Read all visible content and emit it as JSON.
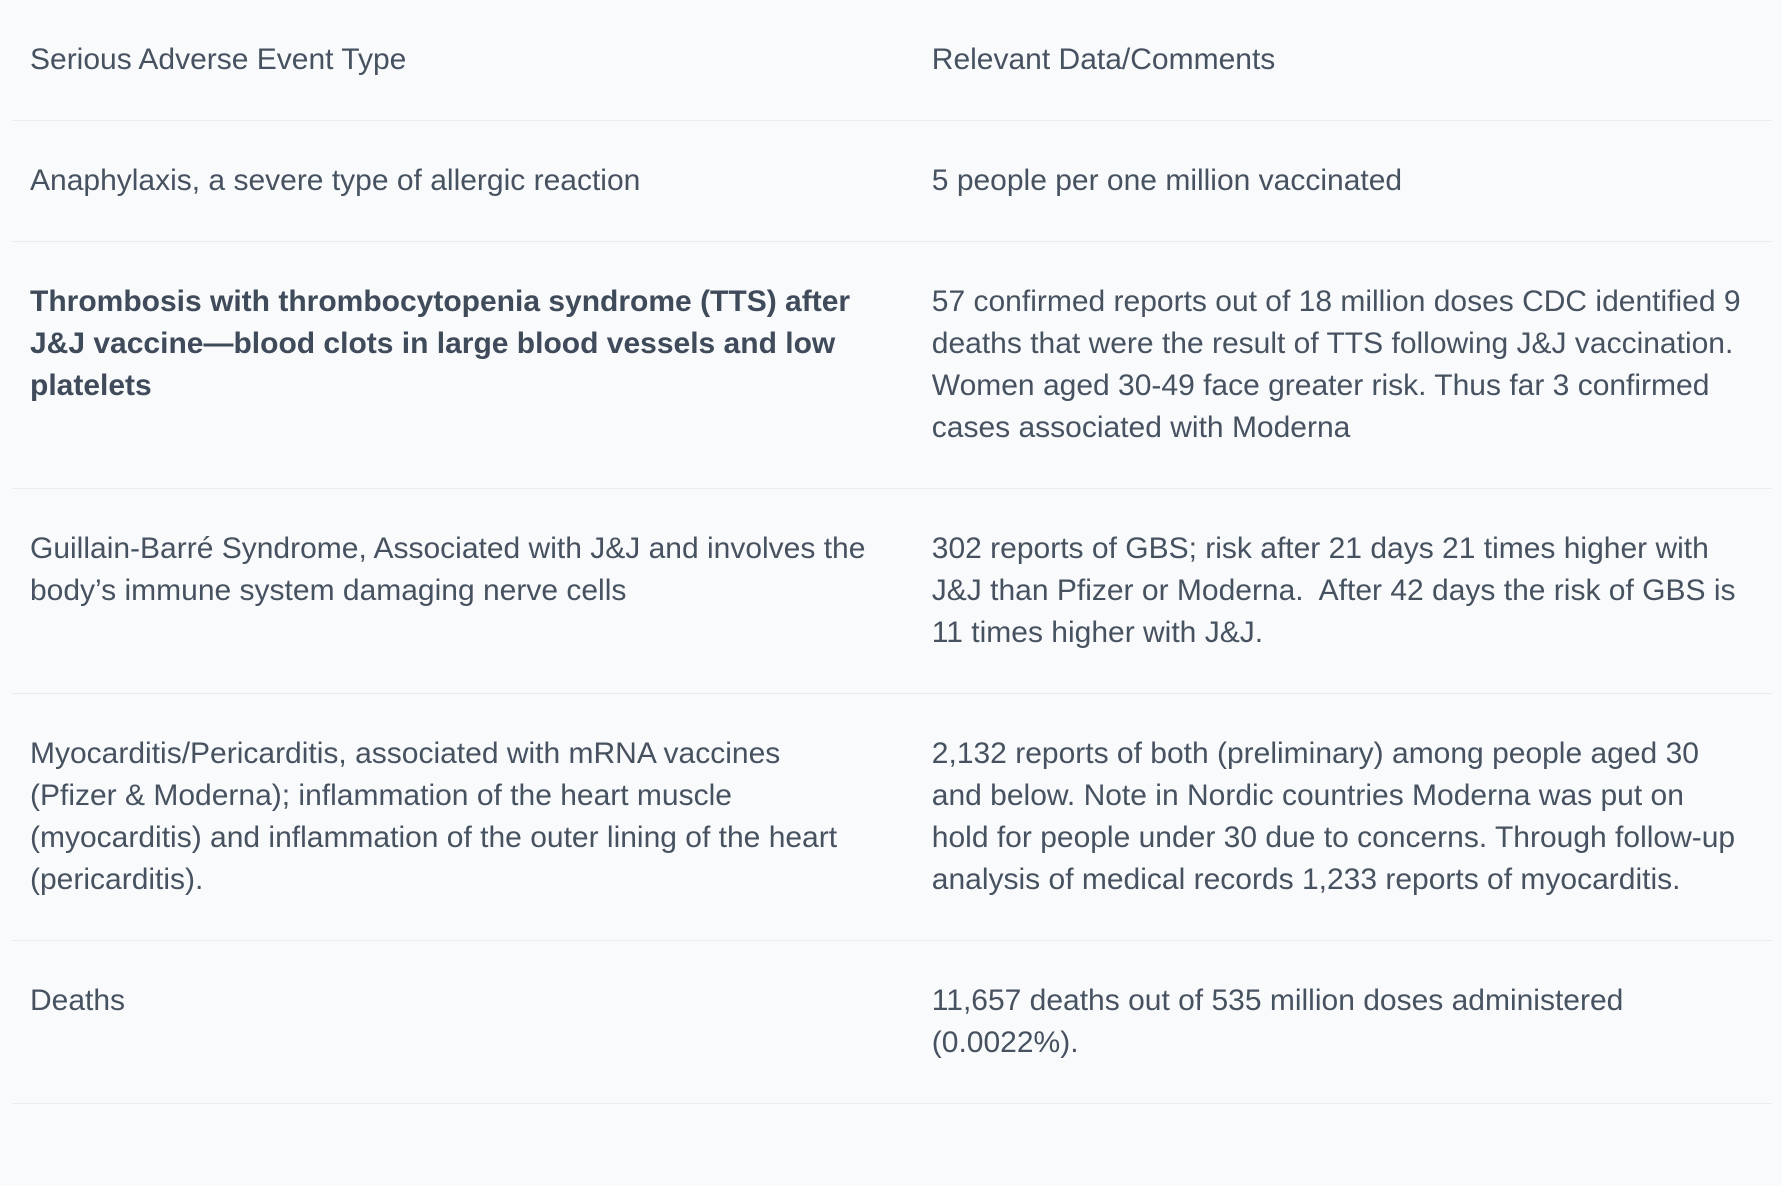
{
  "colors": {
    "page_background": "#f9fafb",
    "divider": "#e9ebee",
    "text": "#475261",
    "bold_text": "#3f4b5a"
  },
  "table": {
    "columns": [
      {
        "label": "Serious Adverse Event Type"
      },
      {
        "label": "Relevant Data/Comments"
      }
    ],
    "rows": [
      {
        "event": "Anaphylaxis, a severe type of allergic reaction",
        "data": "5 people per one million vaccinated"
      },
      {
        "event": "Thrombosis with thrombocytopenia syndrome (TTS) after J&J vaccine—blood clots in large blood vessels and low platelets",
        "data": "57 confirmed reports out of 18 million doses CDC identified 9 deaths that were the result of TTS following J&J vaccination.  Women aged 30-49 face greater risk. Thus far 3 confirmed cases associated with Moderna"
      },
      {
        "event": "Guillain-Barré Syndrome, Associated with J&J and involves the body’s immune system damaging nerve cells",
        "data": "302 reports of GBS; risk after 21 days 21 times higher with J&J than Pfizer or Moderna.  After 42 days the risk of GBS is 11 times higher with J&J."
      },
      {
        "event": "Myocarditis/Pericarditis, associated with mRNA vaccines (Pfizer & Moderna); inflammation of the heart muscle (myocarditis) and inflammation of the outer lining of the heart (pericarditis).",
        "data": "2,132 reports of both (preliminary) among people aged 30 and below. Note in Nordic countries Moderna was put on hold for people under 30 due to concerns. Through follow-up analysis of medical records 1,233 reports of myocarditis."
      },
      {
        "event": "Deaths",
        "data": "11,657 deaths out of 535 million doses administered (0.0022%)."
      }
    ]
  }
}
